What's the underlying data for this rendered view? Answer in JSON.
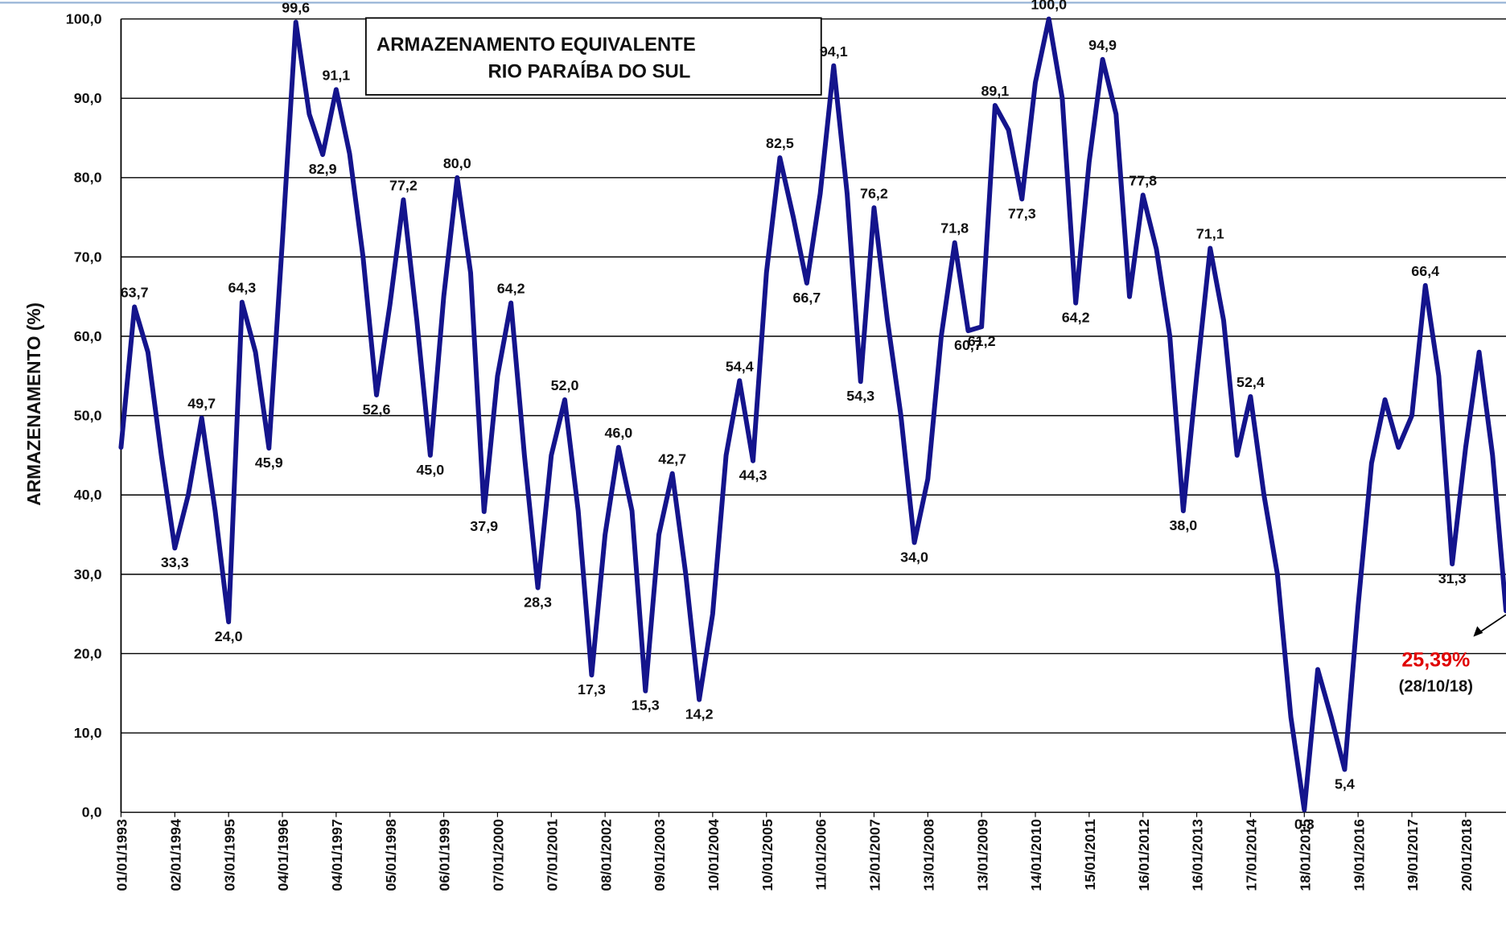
{
  "chart_data": {
    "type": "line",
    "title": [
      "ARMAZENAMENTO EQUIVALENTE",
      "RIO PARAÍBA DO SUL"
    ],
    "y_label": "ARMAZENAMENTO (%)",
    "ylim": [
      0,
      100
    ],
    "yticks": [
      {
        "value": 0,
        "label": "0,0"
      },
      {
        "value": 10,
        "label": "10,0"
      },
      {
        "value": 20,
        "label": "20,0"
      },
      {
        "value": 30,
        "label": "30,0"
      },
      {
        "value": 40,
        "label": "40,0"
      },
      {
        "value": 50,
        "label": "50,0"
      },
      {
        "value": 60,
        "label": "60,0"
      },
      {
        "value": 70,
        "label": "70,0"
      },
      {
        "value": 80,
        "label": "80,0"
      },
      {
        "value": 90,
        "label": "90,0"
      },
      {
        "value": 100,
        "label": "100,0"
      }
    ],
    "grid": true,
    "categories": [
      "01/01/1993",
      null,
      null,
      null,
      "02/01/1994",
      null,
      null,
      null,
      "03/01/1995",
      null,
      null,
      null,
      "04/01/1996",
      null,
      null,
      null,
      "04/01/1997",
      null,
      null,
      null,
      "05/01/1998",
      null,
      null,
      null,
      "06/01/1999",
      null,
      null,
      null,
      "07/01/2000",
      null,
      null,
      null,
      "07/01/2001",
      null,
      null,
      null,
      "08/01/2002",
      null,
      null,
      null,
      "09/01/2003",
      null,
      null,
      null,
      "10/01/2004",
      null,
      null,
      null,
      "10/01/2005",
      null,
      null,
      null,
      "11/01/2006",
      null,
      null,
      null,
      "12/01/2007",
      null,
      null,
      null,
      "13/01/2008",
      null,
      null,
      null,
      "13/01/2009",
      null,
      null,
      null,
      "14/01/2010",
      null,
      null,
      null,
      "15/01/2011",
      null,
      null,
      null,
      "16/01/2012",
      null,
      null,
      null,
      "16/01/2013",
      null,
      null,
      null,
      "17/01/2014",
      null,
      null,
      null,
      "18/01/2015",
      null,
      null,
      null,
      "19/01/2016",
      null,
      null,
      null,
      "19/01/2017",
      null,
      null,
      null,
      "20/01/2018",
      null,
      null,
      null
    ],
    "series": [
      {
        "color": "#14148c",
        "values": [
          46,
          63.7,
          58,
          45,
          33.3,
          40,
          49.7,
          38,
          24.0,
          64.3,
          58,
          45.9,
          72,
          99.6,
          88,
          82.9,
          91.1,
          83,
          70,
          52.6,
          64,
          77.2,
          62,
          45.0,
          65,
          80.0,
          68,
          37.9,
          55,
          64.2,
          45,
          28.3,
          45,
          52.0,
          38,
          17.3,
          35,
          46.0,
          38,
          15.3,
          35,
          42.7,
          30,
          14.2,
          25,
          45,
          54.4,
          44.3,
          68,
          82.5,
          75,
          66.7,
          78,
          94.1,
          78,
          54.3,
          76.2,
          62,
          50,
          34.0,
          42,
          60,
          71.8,
          60.7,
          61.2,
          89.1,
          86,
          77.3,
          92,
          100.0,
          90,
          64.2,
          82,
          94.9,
          88,
          65,
          77.8,
          71,
          60,
          38.0,
          55,
          71.1,
          62,
          45,
          52.4,
          40,
          30,
          12,
          0.3,
          18,
          12,
          5.4,
          26,
          44,
          52,
          46,
          50,
          66.4,
          55,
          31.3,
          46,
          58,
          45,
          25.39
        ],
        "value_labels": [
          null,
          "63,7",
          null,
          null,
          "33,3",
          null,
          "49,7",
          null,
          "24,0",
          "64,3",
          null,
          "45,9",
          null,
          "99,6",
          null,
          "82,9",
          "91,1",
          null,
          null,
          "52,6",
          null,
          "77,2",
          null,
          "45,0",
          null,
          "80,0",
          null,
          "37,9",
          null,
          "64,2",
          null,
          "28,3",
          null,
          "52,0",
          null,
          "17,3",
          null,
          "46,0",
          null,
          "15,3",
          null,
          "42,7",
          null,
          "14,2",
          null,
          null,
          "54,4",
          "44,3",
          null,
          "82,5",
          null,
          "66,7",
          null,
          "94,1",
          null,
          "54,3",
          "76,2",
          null,
          null,
          "34,0",
          null,
          null,
          "71,8",
          "60,7",
          "61,2",
          "89,1",
          null,
          "77,3",
          null,
          "100,0",
          null,
          "64,2",
          null,
          "94,9",
          null,
          null,
          "77,8",
          null,
          null,
          "38,0",
          null,
          "71,1",
          null,
          null,
          "52,4",
          null,
          null,
          null,
          "0,3",
          null,
          null,
          "5,4",
          null,
          null,
          null,
          null,
          null,
          "66,4",
          null,
          "31,3",
          null,
          null,
          null,
          "25,39%"
        ]
      }
    ],
    "annotations": [
      "(28/10/18)"
    ]
  }
}
